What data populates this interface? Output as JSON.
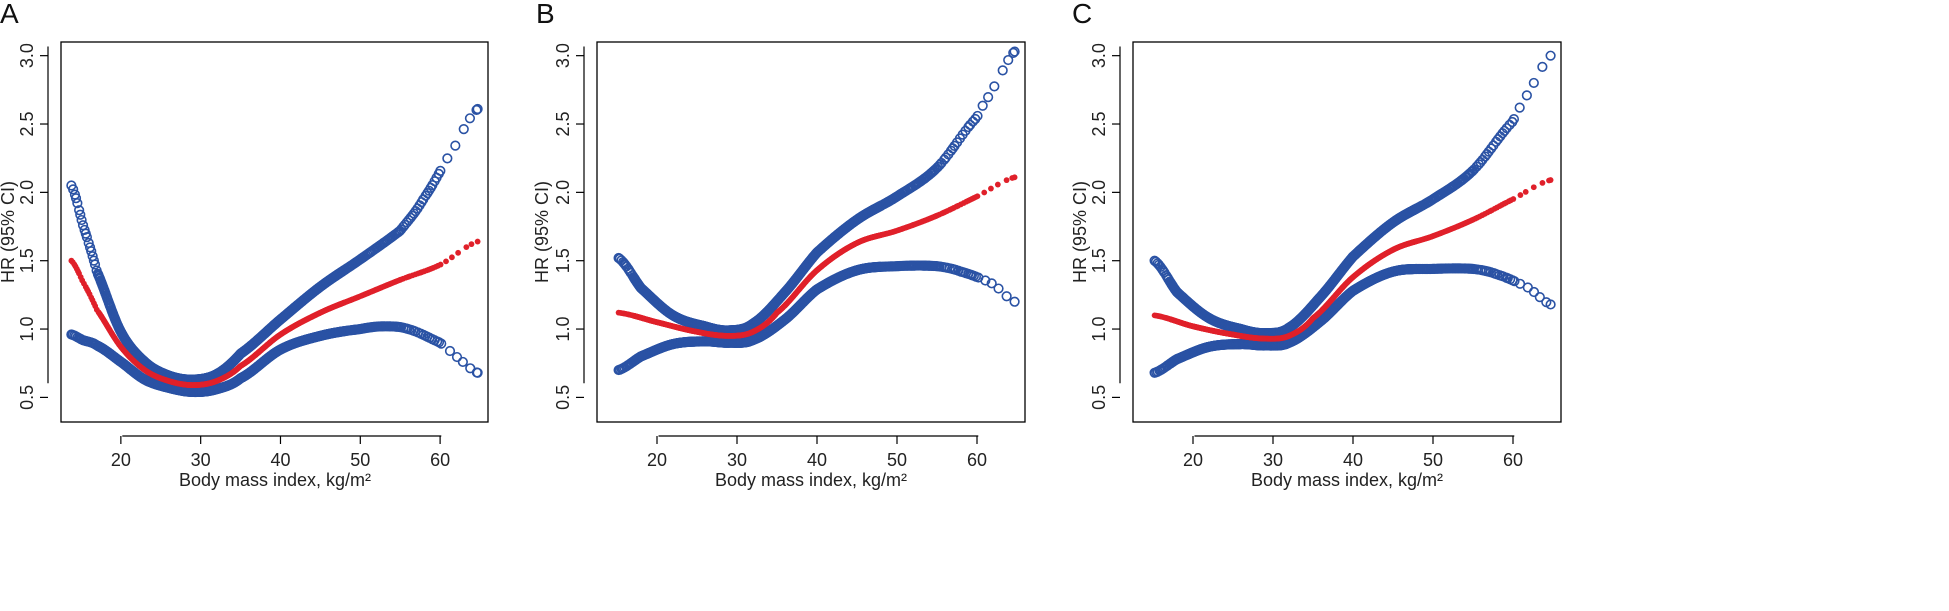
{
  "figure": {
    "panels": [
      "A",
      "B",
      "C"
    ]
  },
  "colors": {
    "ci": "#2a52a4",
    "hr": "#e0202a"
  },
  "chart_data": [
    {
      "type": "scatter",
      "label": "A",
      "xlabel": "Body mass index, kg/m²",
      "ylabel": "HR (95% CI)",
      "xlim": [
        12.5,
        66
      ],
      "ylim": [
        0.32,
        3.1
      ],
      "x_ticks": [
        20,
        30,
        40,
        50,
        60
      ],
      "x_tick_labels": [
        "20",
        "30",
        "40",
        "50",
        "60"
      ],
      "y_ticks": [
        0.5,
        1.0,
        1.5,
        2.0,
        2.5,
        3.0
      ],
      "y_tick_labels": [
        "0.5",
        "1.0",
        "1.5",
        "2.0",
        "2.5",
        "3.0"
      ],
      "series": [
        {
          "name": "HR",
          "x": [
            13.8,
            15.2,
            17,
            20,
            23,
            26,
            29,
            32,
            35,
            40,
            45,
            50,
            55,
            60,
            64.7
          ],
          "y": [
            1.5,
            1.35,
            1.14,
            0.87,
            0.7,
            0.62,
            0.59,
            0.62,
            0.73,
            0.96,
            1.12,
            1.24,
            1.36,
            1.47,
            1.64
          ]
        },
        {
          "name": "Upper CI",
          "x": [
            13.8,
            15.2,
            17,
            20,
            23,
            26,
            29,
            32,
            35,
            40,
            45,
            50,
            55,
            58,
            62,
            64.7
          ],
          "y": [
            2.05,
            1.77,
            1.42,
            0.98,
            0.76,
            0.66,
            0.63,
            0.67,
            0.82,
            1.07,
            1.31,
            1.51,
            1.72,
            1.96,
            2.35,
            2.61
          ]
        },
        {
          "name": "Lower CI",
          "x": [
            13.8,
            15.2,
            17,
            20,
            23,
            26,
            29,
            32,
            35,
            40,
            45,
            50,
            53,
            56,
            60,
            62,
            64.7
          ],
          "y": [
            0.96,
            0.92,
            0.88,
            0.76,
            0.63,
            0.57,
            0.54,
            0.56,
            0.64,
            0.85,
            0.95,
            1.0,
            1.02,
            1.0,
            0.9,
            0.8,
            0.68
          ]
        }
      ]
    },
    {
      "type": "scatter",
      "label": "B",
      "xlabel": "Body mass index, kg/m²",
      "ylabel": "HR (95% CI)",
      "xlim": [
        12.5,
        66
      ],
      "ylim": [
        0.32,
        3.1
      ],
      "x_ticks": [
        20,
        30,
        40,
        50,
        60
      ],
      "x_tick_labels": [
        "20",
        "30",
        "40",
        "50",
        "60"
      ],
      "y_ticks": [
        0.5,
        1.0,
        1.5,
        2.0,
        2.5,
        3.0
      ],
      "y_tick_labels": [
        "0.5",
        "1.0",
        "1.5",
        "2.0",
        "2.5",
        "3.0"
      ],
      "series": [
        {
          "name": "HR",
          "x": [
            15.2,
            20,
            25,
            29,
            32,
            35,
            40,
            45,
            50,
            55,
            60,
            64.7
          ],
          "y": [
            1.12,
            1.05,
            0.98,
            0.95,
            0.98,
            1.12,
            1.43,
            1.63,
            1.72,
            1.83,
            1.97,
            2.11
          ]
        },
        {
          "name": "Upper CI",
          "x": [
            15.2,
            18,
            22,
            26,
            29,
            32,
            36,
            40,
            45,
            50,
            55,
            60,
            62,
            64.7
          ],
          "y": [
            1.52,
            1.3,
            1.1,
            1.02,
            0.99,
            1.04,
            1.27,
            1.56,
            1.8,
            1.97,
            2.18,
            2.55,
            2.76,
            3.03
          ]
        },
        {
          "name": "Lower CI",
          "x": [
            15.2,
            18,
            22,
            26,
            29,
            32,
            36,
            40,
            45,
            50,
            55,
            58,
            62,
            64.7
          ],
          "y": [
            0.7,
            0.8,
            0.89,
            0.91,
            0.9,
            0.92,
            1.07,
            1.29,
            1.43,
            1.46,
            1.46,
            1.42,
            1.33,
            1.2
          ]
        }
      ]
    },
    {
      "type": "scatter",
      "label": "C",
      "xlabel": "Body mass index, kg/m²",
      "ylabel": "HR (95% CI)",
      "xlim": [
        12.5,
        66
      ],
      "ylim": [
        0.32,
        3.1
      ],
      "x_ticks": [
        20,
        30,
        40,
        50,
        60
      ],
      "x_tick_labels": [
        "20",
        "30",
        "40",
        "50",
        "60"
      ],
      "y_ticks": [
        0.5,
        1.0,
        1.5,
        2.0,
        2.5,
        3.0
      ],
      "y_tick_labels": [
        "0.5",
        "1.0",
        "1.5",
        "2.0",
        "2.5",
        "3.0"
      ],
      "series": [
        {
          "name": "HR",
          "x": [
            15.2,
            20,
            25,
            29,
            32,
            35,
            40,
            45,
            50,
            55,
            60,
            64.7
          ],
          "y": [
            1.1,
            1.02,
            0.96,
            0.93,
            0.95,
            1.08,
            1.38,
            1.58,
            1.68,
            1.8,
            1.95,
            2.09
          ]
        },
        {
          "name": "Upper CI",
          "x": [
            15.2,
            18,
            22,
            26,
            29,
            32,
            36,
            40,
            45,
            50,
            55,
            60,
            62,
            64.7
          ],
          "y": [
            1.5,
            1.27,
            1.08,
            1.0,
            0.97,
            1.01,
            1.24,
            1.53,
            1.78,
            1.95,
            2.16,
            2.52,
            2.74,
            3.0
          ]
        },
        {
          "name": "Lower CI",
          "x": [
            15.2,
            18,
            22,
            26,
            29,
            32,
            36,
            40,
            45,
            50,
            55,
            58,
            62,
            64.7
          ],
          "y": [
            0.68,
            0.78,
            0.87,
            0.89,
            0.88,
            0.9,
            1.06,
            1.28,
            1.42,
            1.44,
            1.44,
            1.4,
            1.3,
            1.18
          ]
        }
      ]
    }
  ]
}
